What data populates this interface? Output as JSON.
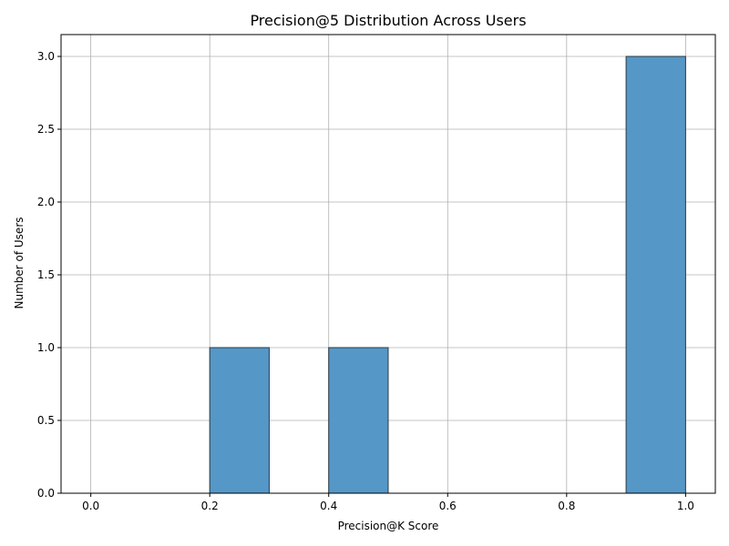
{
  "chart_data": {
    "type": "bar",
    "title": "Precision@5 Distribution Across Users",
    "xlabel": "Precision@K Score",
    "ylabel": "Number of Users",
    "bins": [
      {
        "start": 0.0,
        "end": 0.1,
        "count": 0
      },
      {
        "start": 0.1,
        "end": 0.2,
        "count": 0
      },
      {
        "start": 0.2,
        "end": 0.3,
        "count": 1
      },
      {
        "start": 0.3,
        "end": 0.4,
        "count": 0
      },
      {
        "start": 0.4,
        "end": 0.5,
        "count": 1
      },
      {
        "start": 0.5,
        "end": 0.6,
        "count": 0
      },
      {
        "start": 0.6,
        "end": 0.7,
        "count": 0
      },
      {
        "start": 0.7,
        "end": 0.8,
        "count": 0
      },
      {
        "start": 0.8,
        "end": 0.9,
        "count": 0
      },
      {
        "start": 0.9,
        "end": 1.0,
        "count": 3
      }
    ],
    "xlim": [
      -0.05,
      1.05
    ],
    "ylim": [
      0,
      3.15
    ],
    "xticks": [
      "0.0",
      "0.2",
      "0.4",
      "0.6",
      "0.8",
      "1.0"
    ],
    "xtick_values": [
      0.0,
      0.2,
      0.4,
      0.6,
      0.8,
      1.0
    ],
    "yticks": [
      "0.0",
      "0.5",
      "1.0",
      "1.5",
      "2.0",
      "2.5",
      "3.0"
    ],
    "ytick_values": [
      0.0,
      0.5,
      1.0,
      1.5,
      2.0,
      2.5,
      3.0
    ],
    "grid": true,
    "bar_color": "#5597c6",
    "bar_edge_color": "#2b3a45",
    "grid_color": "#b0b0b0"
  }
}
